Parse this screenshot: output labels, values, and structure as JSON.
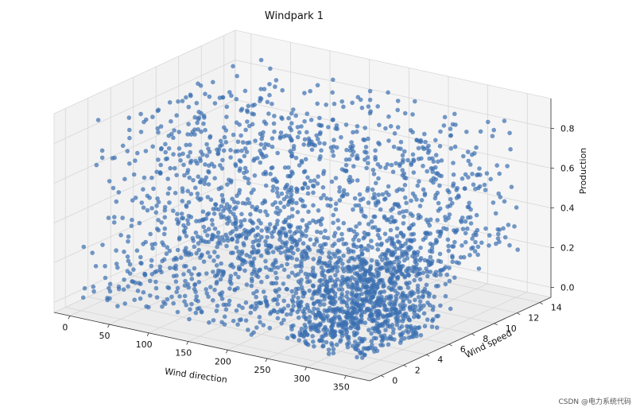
{
  "chart_data": {
    "type": "scatter3d",
    "title": "Windpark 1",
    "xlabel": "Wind direction",
    "ylabel": "Wind speed",
    "zlabel": "Production",
    "xlim": [
      -20,
      380
    ],
    "ylim": [
      -1,
      15
    ],
    "zlim": [
      -0.05,
      0.95
    ],
    "x_ticks": [
      "0",
      "50",
      "100",
      "150",
      "200",
      "250",
      "300",
      "350"
    ],
    "y_ticks": [
      "0",
      "2",
      "4",
      "6",
      "8",
      "10",
      "12",
      "14"
    ],
    "z_ticks": [
      "0.0",
      "0.2",
      "0.4",
      "0.6",
      "0.8"
    ],
    "grid": true,
    "color": "#3a6fb0",
    "clusters": [
      {
        "dir_range": [
          0,
          250
        ],
        "speed_range": [
          0,
          14
        ],
        "prod_range": [
          0.0,
          0.9
        ],
        "relative_density": 1.0
      },
      {
        "dir_range": [
          250,
          360
        ],
        "speed_range": [
          0,
          8
        ],
        "prod_range": [
          0.0,
          0.35
        ],
        "relative_density": 0.6
      },
      {
        "dir_range": [
          250,
          360
        ],
        "speed_range": [
          6,
          14
        ],
        "prod_range": [
          0.2,
          0.85
        ],
        "relative_density": 0.25
      }
    ]
  },
  "watermark": "CSDN @电力系统代码"
}
